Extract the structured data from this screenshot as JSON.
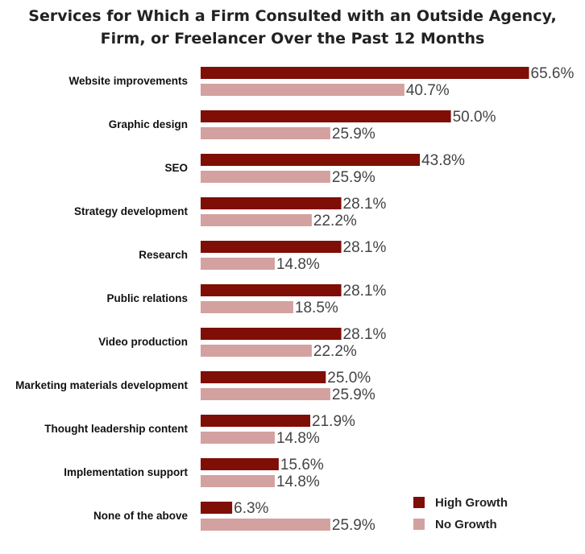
{
  "chart_data": {
    "type": "bar",
    "orientation": "horizontal",
    "title_line1": "Services for Which a Firm Consulted with an Outside Agency,",
    "title_line2": "Firm, or Freelancer Over the Past 12 Months",
    "categories": [
      "Website improvements",
      "Graphic design",
      "SEO",
      "Strategy development",
      "Research",
      "Public relations",
      "Video production",
      "Marketing materials development",
      "Thought leadership content",
      "Implementation support",
      "None of the above"
    ],
    "series": [
      {
        "name": "High Growth",
        "color": "#7f0e06",
        "values": [
          65.6,
          50.0,
          43.8,
          28.1,
          28.1,
          28.1,
          28.1,
          25.0,
          21.9,
          15.6,
          6.3
        ]
      },
      {
        "name": "No Growth",
        "color": "#d3a19f",
        "values": [
          40.7,
          25.9,
          25.9,
          22.2,
          14.8,
          18.5,
          22.2,
          25.9,
          14.8,
          14.8,
          25.9
        ]
      }
    ],
    "value_suffix": "%",
    "xlim": [
      0,
      66
    ],
    "grid": false,
    "legend_position": "bottom-right"
  }
}
